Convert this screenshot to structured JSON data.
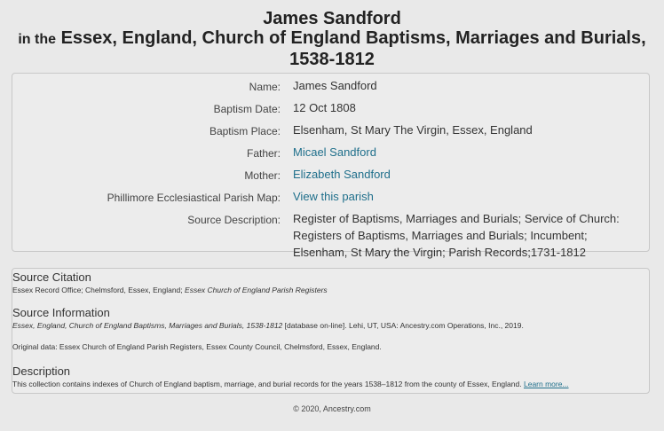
{
  "header": {
    "name": "James Sandford",
    "in_the": "in the",
    "collection_title_line1": "Essex, England, Church of England Baptisms, Marriages and Burials,",
    "collection_title_line2": "1538-1812"
  },
  "record": {
    "rows": [
      {
        "label": "Name:",
        "value": "James Sandford"
      },
      {
        "label": "Baptism Date:",
        "value": "12 Oct 1808"
      },
      {
        "label": "Baptism Place:",
        "value": "Elsenham, St Mary The Virgin, Essex, England"
      },
      {
        "label": "Father:",
        "value": "Micael Sandford"
      },
      {
        "label": "Mother:",
        "value": "Elizabeth Sandford"
      },
      {
        "label": "Phillimore Ecclesiastical Parish Map:",
        "value": "View this parish"
      },
      {
        "label": "Source Description:",
        "value_lines": [
          "Register of Baptisms, Marriages and Burials; Service of Church:",
          "Registers of Baptisms, Marriages and Burials; Incumbent;",
          "Elsenham, St Mary the Virgin; Parish Records;1731-1812"
        ]
      }
    ]
  },
  "source": {
    "citation_heading": "Source Citation",
    "citation_text": "Essex Record Office; Chelmsford, Essex, England;",
    "citation_italic": "Essex Church of England Parish Registers",
    "info_heading": "Source Information",
    "info_italic": "Essex, England, Church of England Baptisms, Marriages and Burials, 1538-1812",
    "info_text": "[database on-line]. Lehi, UT, USA: Ancestry.com Operations, Inc., 2019.",
    "original_data": "Original data: Essex Church of England Parish Registers, Essex County Council, Chelmsford, Essex, England.",
    "description_heading": "Description",
    "description_text": "This collection contains indexes of Church of England baptism, marriage, and burial records for the years 1538–1812 from the county of Essex, England.",
    "learn_more": "Learn more..."
  },
  "footer": {
    "copyright": "© 2020, Ancestry.com"
  },
  "colors": {
    "link": "#1f6f8b",
    "background": "#e9e9e9"
  }
}
